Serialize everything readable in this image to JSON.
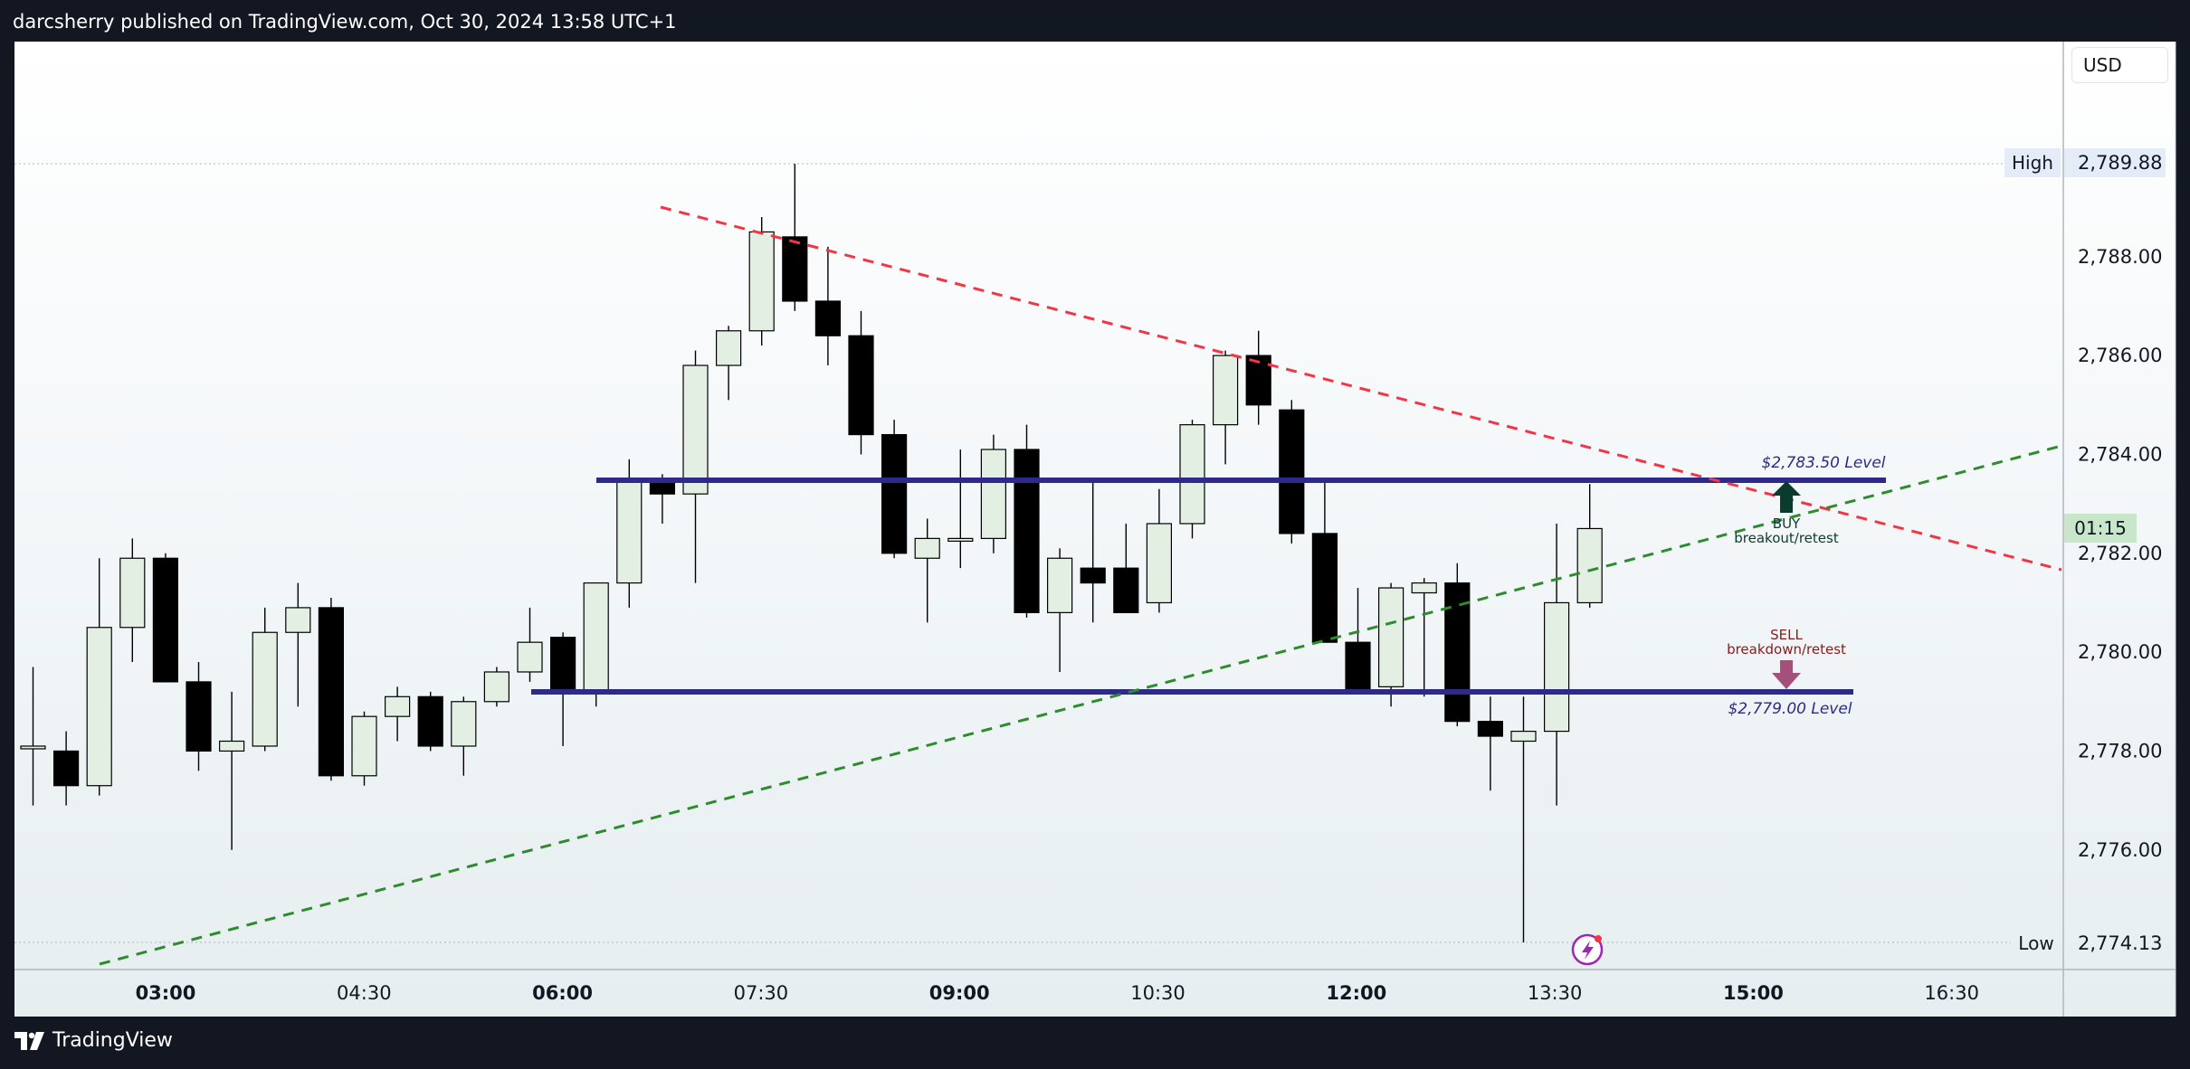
{
  "header": {
    "text": "darcsherry published on TradingView.com, Oct 30, 2024 13:58 UTC+1"
  },
  "currency": {
    "label": "USD"
  },
  "footer": {
    "brand": "TradingView",
    "logo_icon": "tradingview-logo-icon"
  },
  "price_axis": {
    "ticks": [
      "2,788.00",
      "2,786.00",
      "2,784.00",
      "2,782.00",
      "2,780.00",
      "2,778.00",
      "2,776.00"
    ],
    "high": {
      "label": "High",
      "value": "2,789.88"
    },
    "low": {
      "label": "Low",
      "value": "2,774.13"
    },
    "countdown": "01:15"
  },
  "time_axis": {
    "ticks": [
      {
        "label": "03:00",
        "bold": true
      },
      {
        "label": "04:30",
        "bold": false
      },
      {
        "label": "06:00",
        "bold": true
      },
      {
        "label": "07:30",
        "bold": false
      },
      {
        "label": "09:00",
        "bold": true
      },
      {
        "label": "10:30",
        "bold": false
      },
      {
        "label": "12:00",
        "bold": true
      },
      {
        "label": "13:30",
        "bold": false
      },
      {
        "label": "15:00",
        "bold": true
      },
      {
        "label": "16:30",
        "bold": false
      }
    ]
  },
  "annotations": {
    "resistance_label": "$2,783.50 Level",
    "support_label": "$2,779.00 Level",
    "buy_title": "BUY",
    "buy_sub": "breakout/retest",
    "sell_title": "SELL",
    "sell_sub": "breakdown/retest"
  },
  "colors": {
    "up_candle": "#e3efe3",
    "down_candle": "#000000",
    "level_line": "#2e2a8c",
    "resistance_trend": "#f23645",
    "support_trend": "#2e8b2e",
    "buy_arrow": "#0b3b2e",
    "sell_arrow": "#a3507a",
    "countdown_bg": "#c8e6c9"
  },
  "chart_data": {
    "type": "candlestick",
    "interval_minutes": 15,
    "y_range": [
      2773.7,
      2790.3
    ],
    "x_ticks": [
      "03:00",
      "04:30",
      "06:00",
      "07:30",
      "09:00",
      "10:30",
      "12:00",
      "13:30",
      "15:00",
      "16:30"
    ],
    "candles": [
      {
        "o": 2778.1,
        "h": 2779.7,
        "l": 2776.9,
        "c": 2778.1
      },
      {
        "o": 2778.0,
        "h": 2778.4,
        "l": 2776.9,
        "c": 2777.3
      },
      {
        "o": 2777.3,
        "h": 2781.9,
        "l": 2777.1,
        "c": 2780.5
      },
      {
        "o": 2780.5,
        "h": 2782.3,
        "l": 2779.8,
        "c": 2781.9
      },
      {
        "o": 2781.9,
        "h": 2782.0,
        "l": 2779.4,
        "c": 2779.4
      },
      {
        "o": 2779.4,
        "h": 2779.8,
        "l": 2777.6,
        "c": 2778.0
      },
      {
        "o": 2778.0,
        "h": 2779.2,
        "l": 2776.0,
        "c": 2778.2
      },
      {
        "o": 2778.1,
        "h": 2780.9,
        "l": 2778.0,
        "c": 2780.4
      },
      {
        "o": 2780.4,
        "h": 2781.4,
        "l": 2778.9,
        "c": 2780.9
      },
      {
        "o": 2780.9,
        "h": 2781.1,
        "l": 2777.4,
        "c": 2777.5
      },
      {
        "o": 2777.5,
        "h": 2778.8,
        "l": 2777.3,
        "c": 2778.7
      },
      {
        "o": 2778.7,
        "h": 2779.3,
        "l": 2778.2,
        "c": 2779.1
      },
      {
        "o": 2779.1,
        "h": 2779.2,
        "l": 2778.0,
        "c": 2778.1
      },
      {
        "o": 2778.1,
        "h": 2779.1,
        "l": 2777.5,
        "c": 2779.0
      },
      {
        "o": 2779.0,
        "h": 2779.7,
        "l": 2778.9,
        "c": 2779.6
      },
      {
        "o": 2779.6,
        "h": 2780.9,
        "l": 2779.4,
        "c": 2780.2
      },
      {
        "o": 2780.3,
        "h": 2780.4,
        "l": 2778.1,
        "c": 2779.2
      },
      {
        "o": 2779.2,
        "h": 2781.3,
        "l": 2778.9,
        "c": 2781.4
      },
      {
        "o": 2781.4,
        "h": 2783.9,
        "l": 2780.9,
        "c": 2783.5
      },
      {
        "o": 2783.5,
        "h": 2783.6,
        "l": 2782.6,
        "c": 2783.2
      },
      {
        "o": 2783.2,
        "h": 2786.1,
        "l": 2781.4,
        "c": 2785.8
      },
      {
        "o": 2785.8,
        "h": 2786.6,
        "l": 2785.1,
        "c": 2786.5
      },
      {
        "o": 2786.5,
        "h": 2788.8,
        "l": 2786.2,
        "c": 2788.5
      },
      {
        "o": 2788.4,
        "h": 2789.88,
        "l": 2786.9,
        "c": 2787.1
      },
      {
        "o": 2787.1,
        "h": 2788.2,
        "l": 2785.8,
        "c": 2786.4
      },
      {
        "o": 2786.4,
        "h": 2786.9,
        "l": 2784.0,
        "c": 2784.4
      },
      {
        "o": 2784.4,
        "h": 2784.7,
        "l": 2781.9,
        "c": 2782.0
      },
      {
        "o": 2781.9,
        "h": 2782.7,
        "l": 2780.6,
        "c": 2782.3
      },
      {
        "o": 2782.3,
        "h": 2784.1,
        "l": 2781.7,
        "c": 2782.3
      },
      {
        "o": 2782.3,
        "h": 2784.4,
        "l": 2782.0,
        "c": 2784.1
      },
      {
        "o": 2784.1,
        "h": 2784.6,
        "l": 2780.7,
        "c": 2780.8
      },
      {
        "o": 2780.8,
        "h": 2782.1,
        "l": 2779.6,
        "c": 2781.9
      },
      {
        "o": 2781.7,
        "h": 2783.5,
        "l": 2780.6,
        "c": 2781.4
      },
      {
        "o": 2781.7,
        "h": 2782.6,
        "l": 2780.8,
        "c": 2780.8
      },
      {
        "o": 2781.0,
        "h": 2783.3,
        "l": 2780.8,
        "c": 2782.6
      },
      {
        "o": 2782.6,
        "h": 2784.7,
        "l": 2782.3,
        "c": 2784.6
      },
      {
        "o": 2784.6,
        "h": 2786.1,
        "l": 2783.8,
        "c": 2786.0
      },
      {
        "o": 2786.0,
        "h": 2786.5,
        "l": 2784.6,
        "c": 2785.0
      },
      {
        "o": 2784.9,
        "h": 2785.1,
        "l": 2782.2,
        "c": 2782.4
      },
      {
        "o": 2782.4,
        "h": 2783.5,
        "l": 2780.2,
        "c": 2780.2
      },
      {
        "o": 2780.2,
        "h": 2781.3,
        "l": 2779.2,
        "c": 2779.2
      },
      {
        "o": 2779.3,
        "h": 2781.4,
        "l": 2778.9,
        "c": 2781.3
      },
      {
        "o": 2781.2,
        "h": 2781.5,
        "l": 2779.1,
        "c": 2781.4
      },
      {
        "o": 2781.4,
        "h": 2781.8,
        "l": 2778.5,
        "c": 2778.6
      },
      {
        "o": 2778.6,
        "h": 2779.1,
        "l": 2777.2,
        "c": 2778.3
      },
      {
        "o": 2778.2,
        "h": 2779.1,
        "l": 2774.13,
        "c": 2778.4
      },
      {
        "o": 2778.4,
        "h": 2782.6,
        "l": 2776.9,
        "c": 2781.0
      },
      {
        "o": 2781.0,
        "h": 2783.4,
        "l": 2780.9,
        "c": 2782.5
      }
    ],
    "levels": [
      2783.5,
      2779.0
    ]
  }
}
